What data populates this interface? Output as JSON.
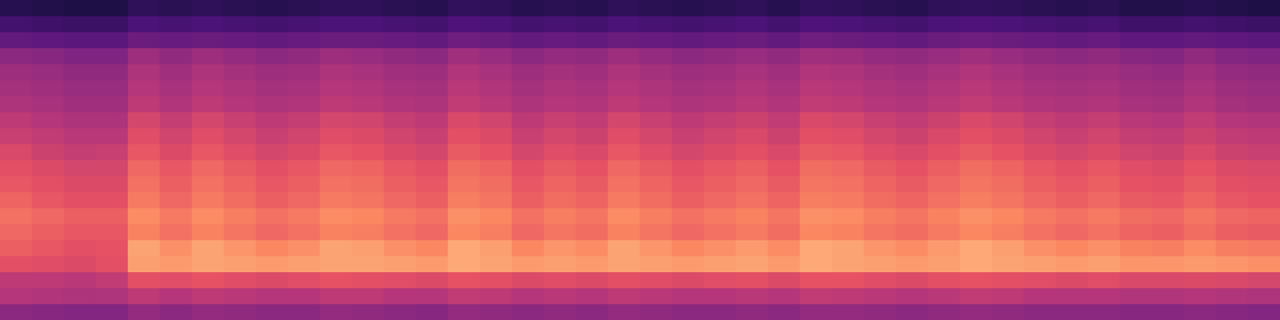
{
  "chart_data": {
    "type": "heatmap",
    "color": "magma",
    "tick_labels": false,
    "grid": false,
    "zlim": [
      0,
      100
    ],
    "z": [
      [
        40,
        39,
        38,
        38,
        42,
        40,
        42,
        41,
        40,
        40,
        42,
        41,
        40,
        39,
        42,
        41,
        40,
        41,
        40,
        42,
        41,
        40,
        40,
        41,
        40,
        42,
        42,
        41,
        40,
        41,
        42,
        41,
        40,
        40,
        40,
        39,
        39,
        40,
        39,
        38
      ],
      [
        50,
        49,
        48,
        48,
        52,
        50,
        52,
        51,
        50,
        50,
        52,
        52,
        50,
        50,
        53,
        52,
        50,
        51,
        50,
        52,
        51,
        50,
        50,
        51,
        50,
        53,
        52,
        51,
        50,
        51,
        53,
        52,
        50,
        50,
        50,
        49,
        49,
        50,
        49,
        48
      ],
      [
        52,
        52,
        51,
        53,
        62,
        61,
        63,
        61,
        60,
        61,
        63,
        62,
        61,
        60,
        63,
        62,
        60,
        61,
        60,
        62,
        61,
        60,
        61,
        62,
        60,
        63,
        63,
        61,
        60,
        62,
        63,
        62,
        61,
        60,
        61,
        59,
        59,
        60,
        59,
        58
      ],
      [
        62,
        61,
        60,
        62,
        80,
        79,
        81,
        80,
        79,
        80,
        81,
        81,
        80,
        79,
        82,
        81,
        79,
        80,
        79,
        81,
        80,
        79,
        80,
        81,
        79,
        82,
        81,
        80,
        79,
        80,
        82,
        81,
        80,
        79,
        80,
        78,
        78,
        79,
        78,
        77
      ],
      [
        66,
        64,
        62,
        63,
        81,
        77,
        81,
        78,
        75,
        77,
        81,
        80,
        77,
        75,
        82,
        80,
        75,
        78,
        76,
        81,
        78,
        75,
        77,
        79,
        76,
        82,
        81,
        78,
        76,
        79,
        82,
        80,
        77,
        75,
        77,
        74,
        73,
        76,
        73,
        72
      ],
      [
        68,
        66,
        64,
        64,
        74,
        70,
        74,
        71,
        68,
        70,
        74,
        73,
        70,
        68,
        75,
        73,
        68,
        71,
        69,
        74,
        71,
        68,
        70,
        72,
        69,
        75,
        74,
        71,
        69,
        72,
        75,
        73,
        70,
        68,
        70,
        67,
        66,
        69,
        66,
        65
      ],
      [
        70,
        68,
        66,
        66,
        76,
        72,
        76,
        73,
        70,
        72,
        76,
        75,
        72,
        70,
        77,
        75,
        70,
        73,
        71,
        76,
        73,
        70,
        72,
        74,
        71,
        77,
        76,
        73,
        71,
        74,
        77,
        75,
        72,
        70,
        72,
        69,
        68,
        71,
        68,
        67
      ],
      [
        67,
        64,
        62,
        62,
        72,
        68,
        72,
        69,
        66,
        68,
        72,
        71,
        68,
        66,
        73,
        71,
        66,
        69,
        67,
        72,
        69,
        66,
        68,
        70,
        67,
        73,
        72,
        69,
        67,
        70,
        73,
        71,
        68,
        66,
        68,
        65,
        64,
        67,
        64,
        63
      ],
      [
        64,
        62,
        60,
        60,
        70,
        66,
        70,
        67,
        64,
        66,
        70,
        69,
        66,
        64,
        71,
        69,
        64,
        67,
        65,
        70,
        67,
        64,
        66,
        68,
        65,
        71,
        70,
        67,
        65,
        68,
        71,
        69,
        66,
        64,
        66,
        63,
        62,
        65,
        62,
        61
      ],
      [
        62,
        60,
        58,
        58,
        68,
        64,
        68,
        65,
        62,
        64,
        68,
        67,
        64,
        62,
        69,
        67,
        62,
        65,
        63,
        68,
        65,
        62,
        64,
        66,
        63,
        69,
        68,
        65,
        63,
        66,
        69,
        67,
        64,
        62,
        64,
        61,
        60,
        63,
        60,
        59
      ],
      [
        59,
        56,
        54,
        55,
        64,
        60,
        64,
        61,
        58,
        60,
        64,
        63,
        60,
        58,
        65,
        63,
        58,
        61,
        59,
        64,
        61,
        58,
        60,
        62,
        59,
        65,
        64,
        61,
        59,
        62,
        65,
        63,
        60,
        58,
        60,
        57,
        56,
        59,
        56,
        55
      ],
      [
        55,
        53,
        51,
        51,
        61,
        57,
        61,
        58,
        55,
        57,
        61,
        60,
        57,
        55,
        62,
        60,
        55,
        58,
        56,
        61,
        58,
        55,
        57,
        59,
        56,
        62,
        61,
        58,
        56,
        59,
        62,
        60,
        57,
        55,
        57,
        54,
        53,
        56,
        53,
        52
      ],
      [
        52,
        50,
        48,
        48,
        58,
        54,
        58,
        55,
        52,
        54,
        58,
        57,
        54,
        52,
        59,
        57,
        52,
        55,
        53,
        58,
        55,
        52,
        54,
        56,
        53,
        59,
        58,
        55,
        53,
        56,
        59,
        57,
        54,
        52,
        54,
        51,
        50,
        53,
        50,
        49
      ],
      [
        48,
        47,
        45,
        45,
        52,
        49,
        52,
        50,
        48,
        49,
        52,
        51,
        49,
        48,
        53,
        51,
        48,
        50,
        49,
        52,
        50,
        48,
        49,
        51,
        49,
        53,
        52,
        50,
        49,
        51,
        53,
        51,
        49,
        48,
        49,
        47,
        46,
        49,
        46,
        45
      ],
      [
        46,
        45,
        43,
        43,
        50,
        47,
        50,
        48,
        46,
        47,
        50,
        49,
        47,
        46,
        51,
        49,
        46,
        48,
        47,
        50,
        48,
        46,
        47,
        49,
        47,
        51,
        50,
        48,
        47,
        49,
        51,
        49,
        47,
        46,
        47,
        45,
        44,
        47,
        44,
        43
      ],
      [
        44,
        43,
        41,
        41,
        48,
        45,
        48,
        46,
        44,
        45,
        48,
        47,
        45,
        44,
        49,
        47,
        44,
        46,
        45,
        48,
        46,
        44,
        45,
        47,
        45,
        49,
        48,
        46,
        45,
        47,
        49,
        47,
        45,
        44,
        45,
        43,
        42,
        45,
        42,
        41
      ],
      [
        40,
        39,
        37,
        37,
        44,
        41,
        44,
        42,
        40,
        41,
        44,
        43,
        41,
        40,
        45,
        43,
        40,
        42,
        41,
        44,
        42,
        40,
        41,
        43,
        41,
        45,
        44,
        42,
        41,
        43,
        45,
        43,
        41,
        40,
        41,
        39,
        38,
        41,
        38,
        37
      ],
      [
        30,
        29,
        28,
        28,
        32,
        31,
        32,
        31,
        30,
        31,
        32,
        32,
        31,
        30,
        33,
        32,
        30,
        31,
        30,
        32,
        31,
        30,
        31,
        32,
        30,
        33,
        32,
        31,
        30,
        32,
        33,
        32,
        31,
        30,
        31,
        29,
        29,
        30,
        29,
        28
      ],
      [
        22,
        21,
        20,
        20,
        24,
        23,
        24,
        23,
        22,
        23,
        24,
        24,
        23,
        22,
        25,
        24,
        22,
        23,
        22,
        24,
        23,
        22,
        23,
        24,
        22,
        25,
        24,
        23,
        22,
        24,
        25,
        24,
        23,
        22,
        23,
        21,
        21,
        22,
        21,
        20
      ],
      [
        15,
        14,
        13,
        13,
        17,
        16,
        17,
        16,
        15,
        16,
        17,
        17,
        16,
        15,
        18,
        17,
        15,
        16,
        15,
        17,
        16,
        15,
        16,
        17,
        15,
        18,
        17,
        16,
        15,
        17,
        18,
        17,
        16,
        15,
        16,
        14,
        14,
        15,
        14,
        13
      ]
    ]
  }
}
